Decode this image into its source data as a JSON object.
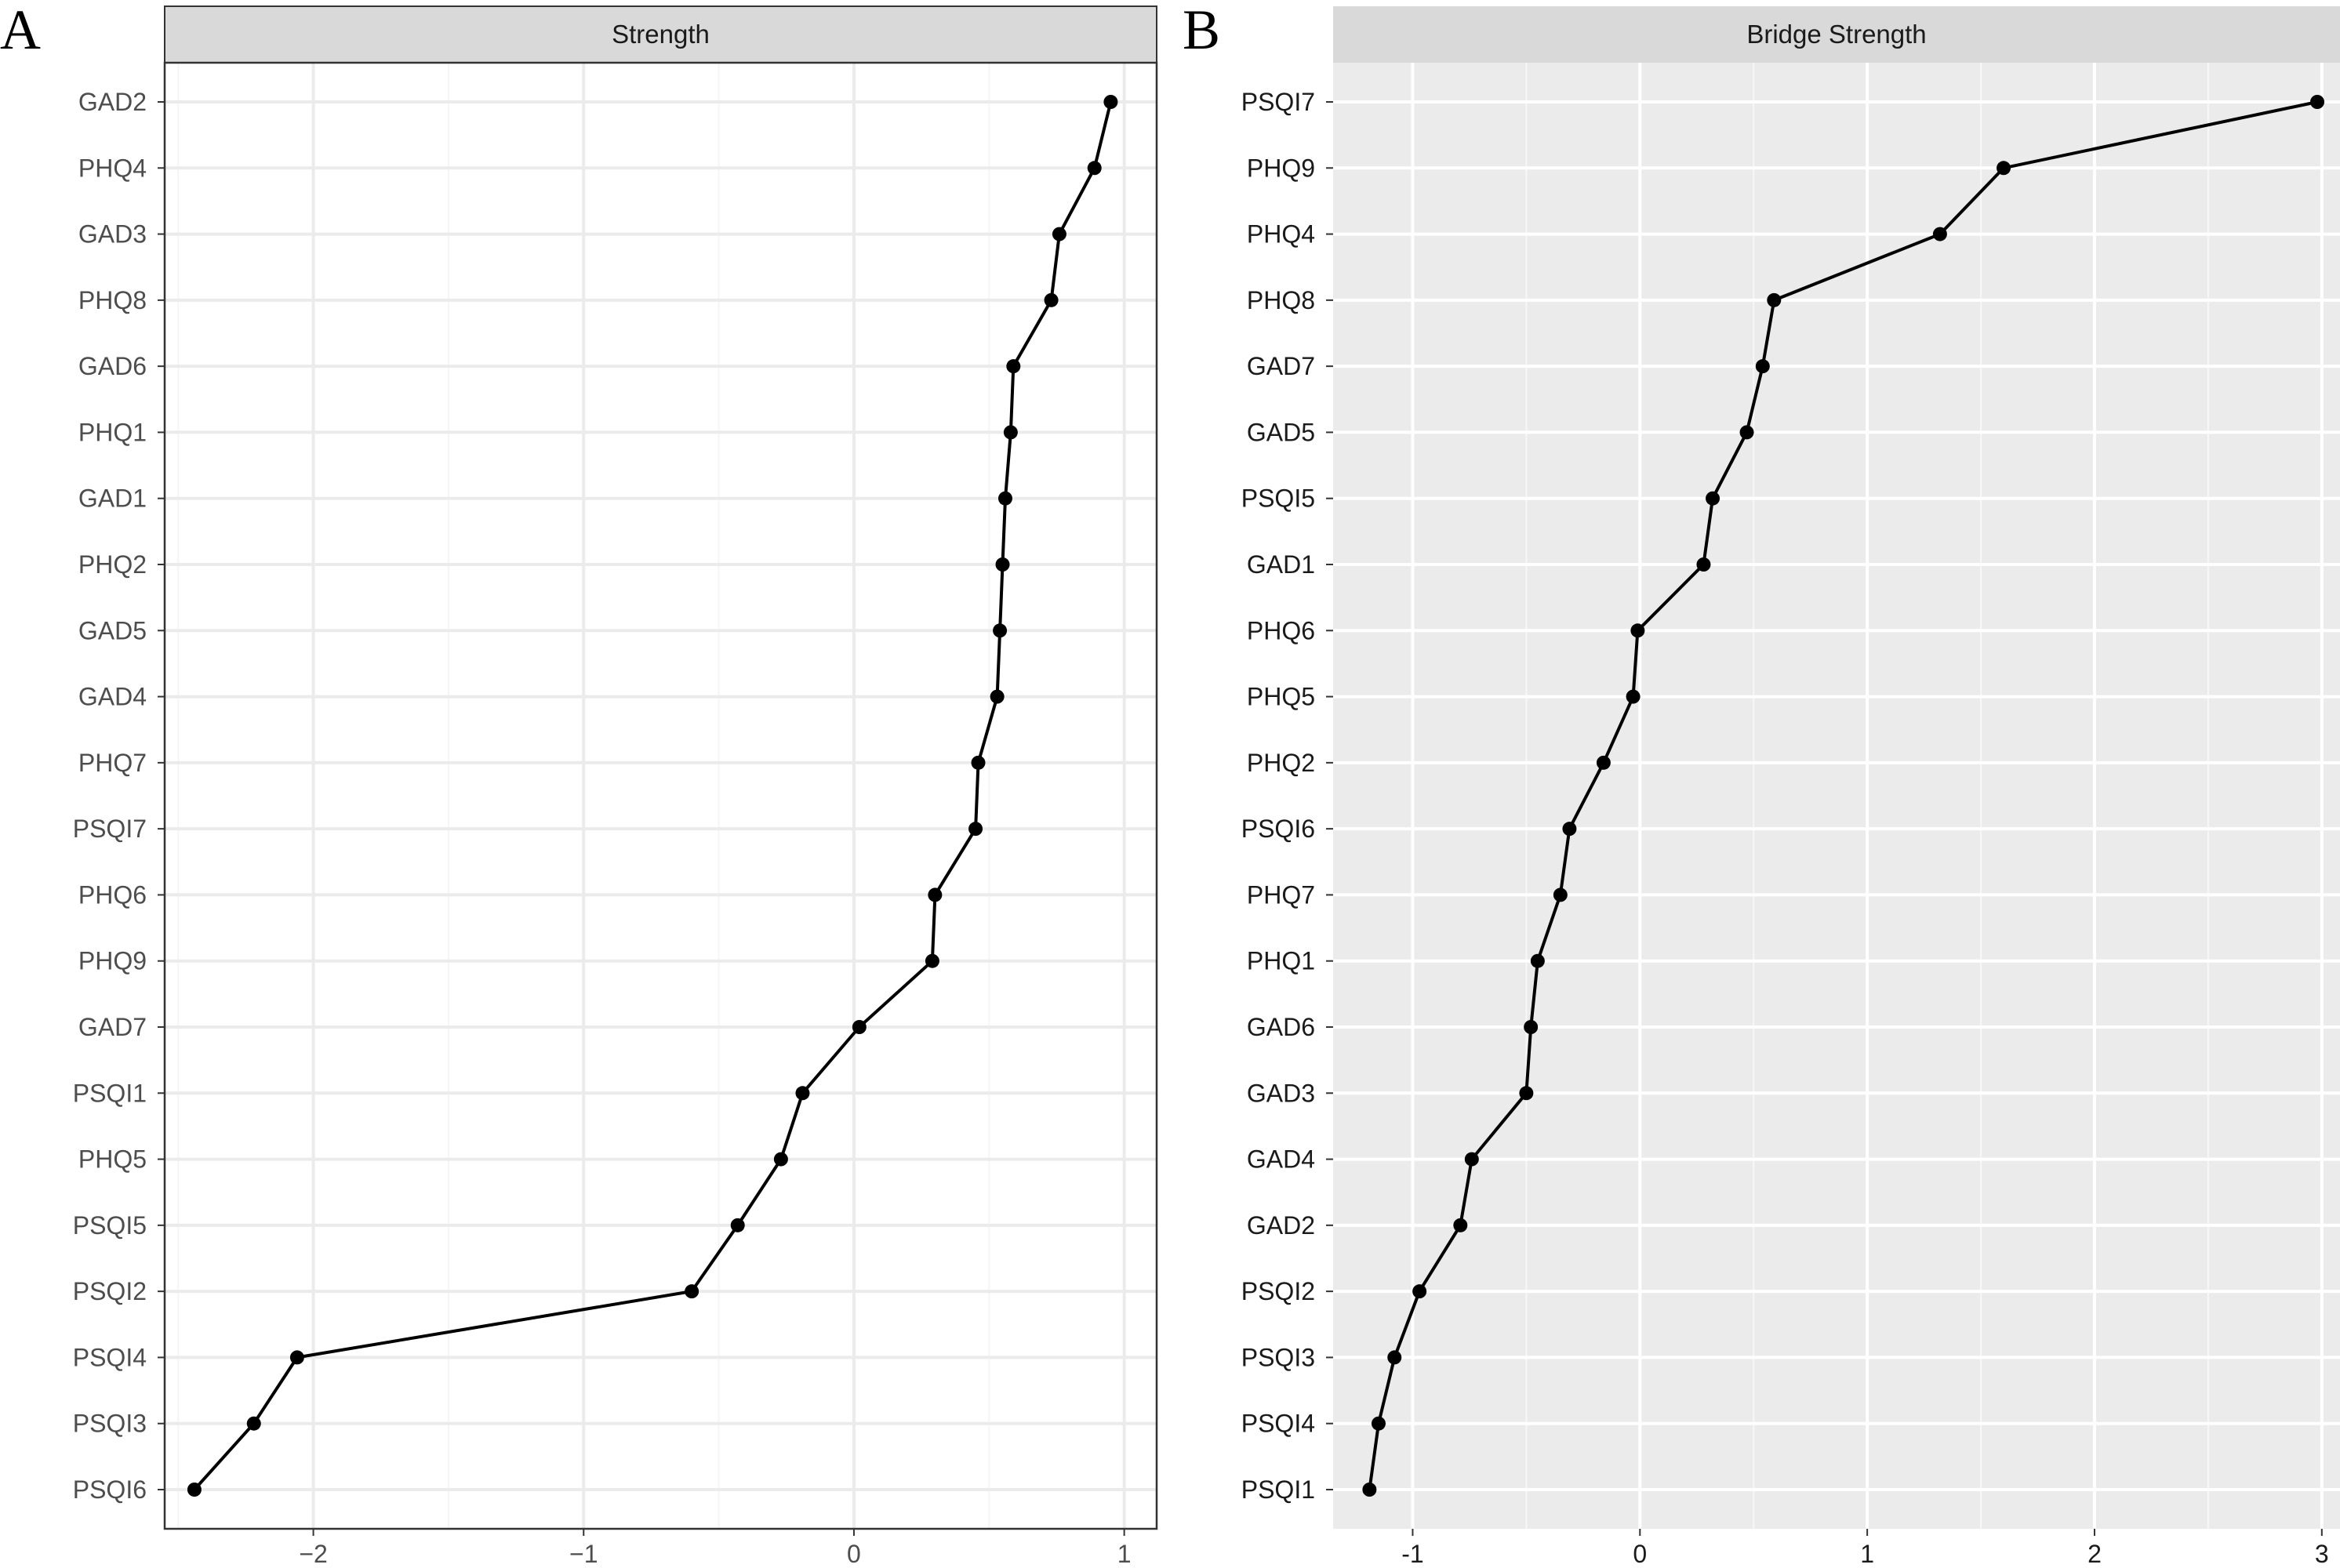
{
  "chart_data": [
    {
      "type": "line",
      "panel_label": "A",
      "title": "Strength",
      "theme": "bw",
      "xlim": [
        -2.55,
        1.12
      ],
      "xticks": [
        -2,
        -1,
        0,
        1
      ],
      "xtick_labels": [
        "−2",
        "−1",
        "0",
        "1"
      ],
      "grid": true,
      "categories": [
        "GAD2",
        "PHQ4",
        "GAD3",
        "PHQ8",
        "GAD6",
        "PHQ1",
        "GAD1",
        "PHQ2",
        "GAD5",
        "GAD4",
        "PHQ7",
        "PSQI7",
        "PHQ6",
        "PHQ9",
        "GAD7",
        "PSQI1",
        "PHQ5",
        "PSQI5",
        "PSQI2",
        "PSQI4",
        "PSQI3",
        "PSQI6"
      ],
      "values": [
        0.95,
        0.89,
        0.76,
        0.73,
        0.59,
        0.58,
        0.56,
        0.55,
        0.54,
        0.53,
        0.46,
        0.45,
        0.3,
        0.29,
        0.02,
        -0.19,
        -0.27,
        -0.43,
        -0.6,
        -2.06,
        -2.22,
        -2.44
      ]
    },
    {
      "type": "line",
      "panel_label": "B",
      "title": "Bridge Strength",
      "theme": "grey",
      "xlim": [
        -1.35,
        3.08
      ],
      "xticks": [
        -1,
        0,
        1,
        2,
        3
      ],
      "xtick_labels": [
        "-1",
        "0",
        "1",
        "2",
        "3"
      ],
      "grid": true,
      "categories": [
        "PSQI7",
        "PHQ9",
        "PHQ4",
        "PHQ8",
        "GAD7",
        "GAD5",
        "PSQI5",
        "GAD1",
        "PHQ6",
        "PHQ5",
        "PHQ2",
        "PSQI6",
        "PHQ7",
        "PHQ1",
        "GAD6",
        "GAD3",
        "GAD4",
        "GAD2",
        "PSQI2",
        "PSQI3",
        "PSQI4",
        "PSQI1"
      ],
      "values": [
        2.98,
        1.6,
        1.32,
        0.59,
        0.54,
        0.47,
        0.32,
        0.28,
        -0.01,
        -0.03,
        -0.16,
        -0.31,
        -0.35,
        -0.45,
        -0.48,
        -0.5,
        -0.74,
        -0.79,
        -0.97,
        -1.08,
        -1.15,
        -1.19
      ]
    }
  ]
}
